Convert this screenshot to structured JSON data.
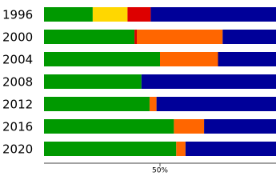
{
  "chart_data": {
    "type": "stacked-bar-horizontal",
    "categories": [
      "1996",
      "2000",
      "2004",
      "2008",
      "2012",
      "2016",
      "2020"
    ],
    "series": [
      {
        "color": "#009900",
        "values": [
          21,
          39,
          50,
          42,
          45.5,
          56,
          57
        ]
      },
      {
        "color": "#ffd700",
        "values": [
          15,
          0,
          0,
          0,
          0,
          0,
          0
        ]
      },
      {
        "color": "#dd0000",
        "values": [
          10,
          1,
          0,
          0,
          0,
          0,
          0
        ]
      },
      {
        "color": "#ff6600",
        "values": [
          0,
          37,
          25,
          0,
          3,
          13,
          4
        ]
      },
      {
        "color": "#000099",
        "values": [
          54,
          23,
          25,
          58,
          51.5,
          31,
          39
        ]
      }
    ],
    "xlim": [
      0,
      100
    ],
    "xticks": [
      {
        "value": 50,
        "label": "50%"
      }
    ]
  }
}
